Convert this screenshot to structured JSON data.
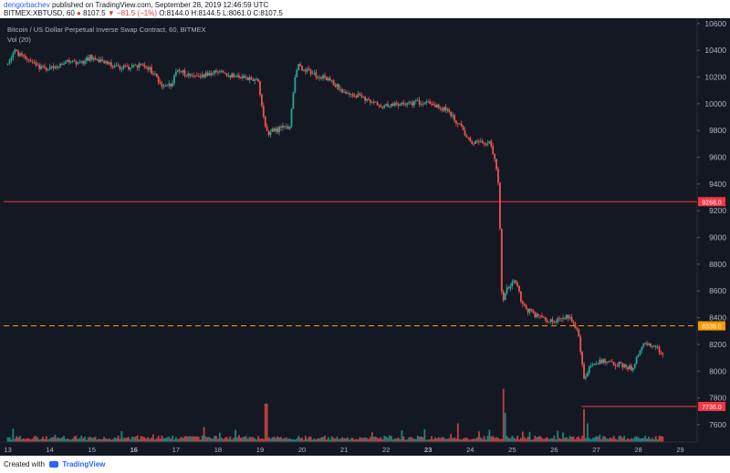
{
  "header": {
    "author": "dengorbachev",
    "published_text": "published on TradingView.com, September 28, 2019 12:46:59 UTC",
    "symbol": "BITMEX:XBTUSD, 60",
    "last": "8107.5",
    "change": "▼ −81.5 (−1%)",
    "ohlc": "O:8144.0 H:8144.5 L:8061.0 C:8107.5"
  },
  "footer": {
    "created_with": "Created with",
    "brand": "TradingView"
  },
  "colors": {
    "background": "#141823",
    "up": "#26a69a",
    "down": "#ef5350",
    "hline_red": "#f23645",
    "hline_orange": "#ff9800",
    "text": "#b2b5be"
  },
  "chart_data": {
    "type": "candlestick",
    "title": "Bitcoin / US Dollar Perpetual Inverse Swap Contract, 60, BITMEX",
    "indicator": "Vol (20)",
    "x_ticks": [
      "13",
      "14",
      "15",
      "16",
      "17",
      "18",
      "19",
      "20",
      "21",
      "22",
      "23",
      "24",
      "25",
      "26",
      "27",
      "28",
      "29"
    ],
    "bold_x_ticks": [
      "16",
      "23"
    ],
    "y_ticks": [
      7600,
      7800,
      8000,
      8200,
      8400,
      8600,
      8800,
      9000,
      9200,
      9400,
      9600,
      9800,
      10000,
      10200,
      10400,
      10600
    ],
    "ylim": [
      7470,
      10640
    ],
    "x_range_days": [
      12.9,
      29.4
    ],
    "horizontal_lines": [
      {
        "price": 9268.0,
        "label": "9268.0",
        "style": "solid",
        "color": "#f23645",
        "x_start_day": 12.9
      },
      {
        "price": 8339.0,
        "label": "8339.0",
        "style": "dashed",
        "color": "#ff9800",
        "x_start_day": 12.9
      },
      {
        "price": 7736.0,
        "label": "7736.0",
        "style": "solid",
        "color": "#f23645",
        "x_start_day": 26.65
      }
    ],
    "price_path": [
      [
        13.0,
        10300
      ],
      [
        13.2,
        10400
      ],
      [
        13.6,
        10300
      ],
      [
        14.0,
        10250
      ],
      [
        14.4,
        10320
      ],
      [
        14.8,
        10300
      ],
      [
        15.0,
        10350
      ],
      [
        15.4,
        10300
      ],
      [
        15.8,
        10270
      ],
      [
        16.3,
        10290
      ],
      [
        16.55,
        10220
      ],
      [
        16.7,
        10120
      ],
      [
        16.95,
        10150
      ],
      [
        17.05,
        10250
      ],
      [
        17.5,
        10200
      ],
      [
        18.0,
        10240
      ],
      [
        18.5,
        10200
      ],
      [
        19.0,
        10180
      ],
      [
        19.12,
        9900
      ],
      [
        19.2,
        9780
      ],
      [
        19.5,
        9810
      ],
      [
        19.75,
        9830
      ],
      [
        19.85,
        10150
      ],
      [
        19.95,
        10280
      ],
      [
        20.3,
        10220
      ],
      [
        20.7,
        10180
      ],
      [
        21.0,
        10100
      ],
      [
        21.4,
        10060
      ],
      [
        22.0,
        9980
      ],
      [
        22.5,
        10000
      ],
      [
        23.0,
        10020
      ],
      [
        23.5,
        9950
      ],
      [
        23.8,
        9830
      ],
      [
        24.1,
        9700
      ],
      [
        24.5,
        9720
      ],
      [
        24.65,
        9560
      ],
      [
        24.72,
        9380
      ],
      [
        24.8,
        8500
      ],
      [
        24.9,
        8600
      ],
      [
        25.1,
        8700
      ],
      [
        25.3,
        8480
      ],
      [
        25.6,
        8420
      ],
      [
        25.9,
        8380
      ],
      [
        26.2,
        8380
      ],
      [
        26.4,
        8420
      ],
      [
        26.6,
        8300
      ],
      [
        26.75,
        7950
      ],
      [
        26.9,
        8050
      ],
      [
        27.2,
        8080
      ],
      [
        27.6,
        8050
      ],
      [
        27.9,
        8020
      ],
      [
        28.1,
        8180
      ],
      [
        28.3,
        8200
      ],
      [
        28.5,
        8170
      ],
      [
        28.6,
        8107
      ]
    ],
    "volume_spikes": [
      {
        "day": 19.15,
        "level": 0.72
      },
      {
        "day": 24.78,
        "level": 1.0
      },
      {
        "day": 24.85,
        "level": 0.55
      },
      {
        "day": 26.7,
        "level": 0.62
      },
      {
        "day": 26.8,
        "level": 0.35
      },
      {
        "day": 23.7,
        "level": 0.35
      },
      {
        "day": 24.2,
        "level": 0.2
      }
    ],
    "volume_ylim": [
      0,
      1.0
    ],
    "grid": false
  }
}
